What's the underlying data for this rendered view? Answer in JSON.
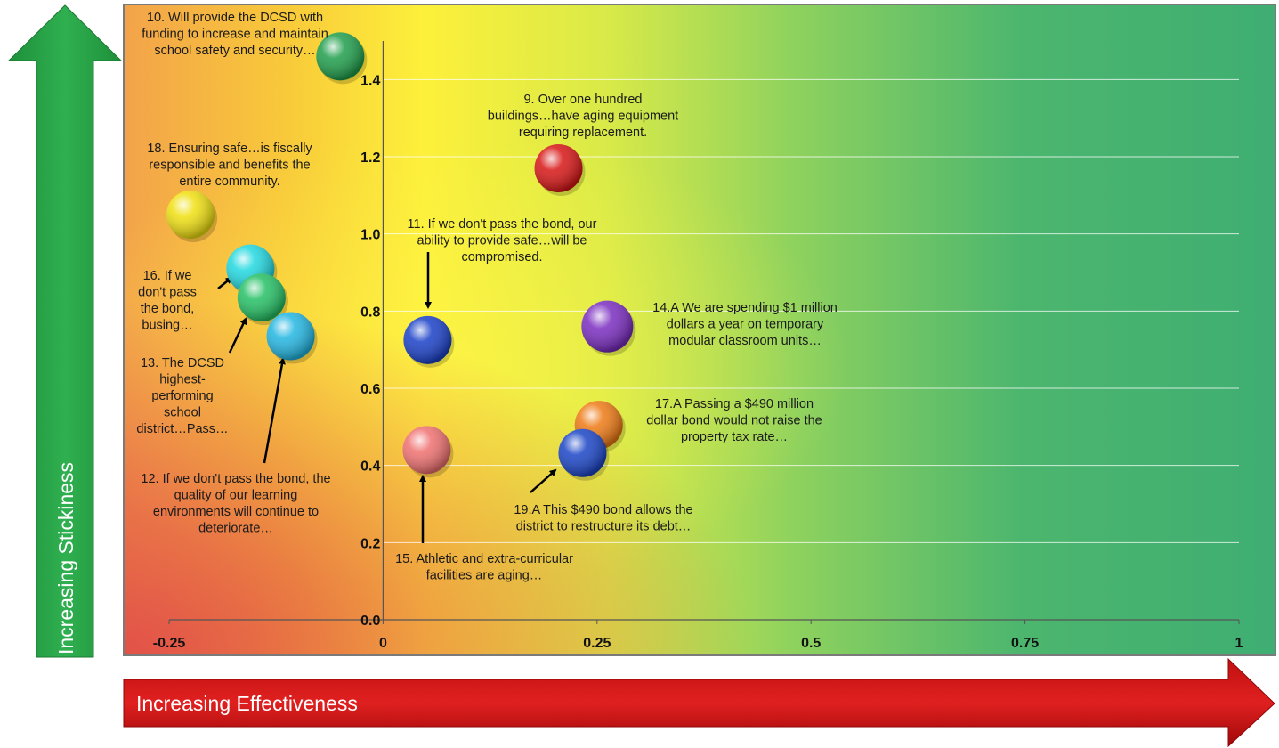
{
  "chart_data": {
    "type": "scatter",
    "xlim": [
      -0.25,
      1
    ],
    "ylim": [
      0,
      1.5
    ],
    "x_ticks": [
      "-0.25",
      "0",
      "0.25",
      "0.5",
      "0.75",
      "1"
    ],
    "y_ticks": [
      "0.0",
      "0.2",
      "0.4",
      "0.6",
      "0.8",
      "1.0",
      "1.2",
      "1.4"
    ],
    "xlabel": "Increasing Effectiveness",
    "ylabel": "Increasing Stickiness",
    "grid": "horizontal",
    "points": [
      {
        "id": "p10",
        "x": -0.05,
        "y": 1.46,
        "color": "#1e9e4a",
        "label": [
          "10. Will provide the DCSD with",
          "funding to increase and maintain",
          "school safety and security…"
        ]
      },
      {
        "id": "p9",
        "x": 0.205,
        "y": 1.17,
        "color": "#d81515",
        "label": [
          "9. Over one hundred",
          "buildings…have aging equipment",
          "requiring replacement."
        ]
      },
      {
        "id": "p18",
        "x": -0.225,
        "y": 1.05,
        "color": "#f0e010",
        "label": [
          "18. Ensuring safe…is fiscally",
          "responsible and benefits the",
          "entire community."
        ]
      },
      {
        "id": "p16",
        "x": -0.155,
        "y": 0.91,
        "color": "#20d8e0",
        "label": [
          "16. If we",
          "don't pass",
          "the bond,",
          "busing…"
        ]
      },
      {
        "id": "p13",
        "x": -0.142,
        "y": 0.835,
        "color": "#24c064",
        "label": [
          "13. The DCSD",
          "highest-",
          "performing",
          "school",
          "district…Pass…"
        ]
      },
      {
        "id": "p12",
        "x": -0.108,
        "y": 0.735,
        "color": "#22b6e2",
        "label": [
          "12. If we don't pass the bond, the",
          "quality of our learning",
          "environments  will continue to",
          "deteriorate…"
        ]
      },
      {
        "id": "p11",
        "x": 0.052,
        "y": 0.725,
        "color": "#1a40c8",
        "label": [
          "11. If we don't pass the bond, our",
          "ability to provide safe…will be",
          "compromised."
        ]
      },
      {
        "id": "p14A",
        "x": 0.262,
        "y": 0.76,
        "color": "#7a2cc0",
        "label": [
          "14.A We are spending $1 million",
          "dollars a year on temporary",
          "modular classroom units…"
        ]
      },
      {
        "id": "p17A",
        "x": 0.252,
        "y": 0.505,
        "color": "#ee7a14",
        "label": [
          "17.A Passing a $490 million",
          "dollar bond would not raise the",
          "property tax rate…"
        ]
      },
      {
        "id": "p19A",
        "x": 0.233,
        "y": 0.432,
        "color": "#1a44c6",
        "label": [
          "19.A This $490 bond allows the",
          "district to restructure its debt…"
        ]
      },
      {
        "id": "p15",
        "x": 0.051,
        "y": 0.44,
        "color": "#f07070",
        "label": [
          "15. Athletic and extra-curricular",
          "facilities are aging…"
        ]
      }
    ]
  }
}
